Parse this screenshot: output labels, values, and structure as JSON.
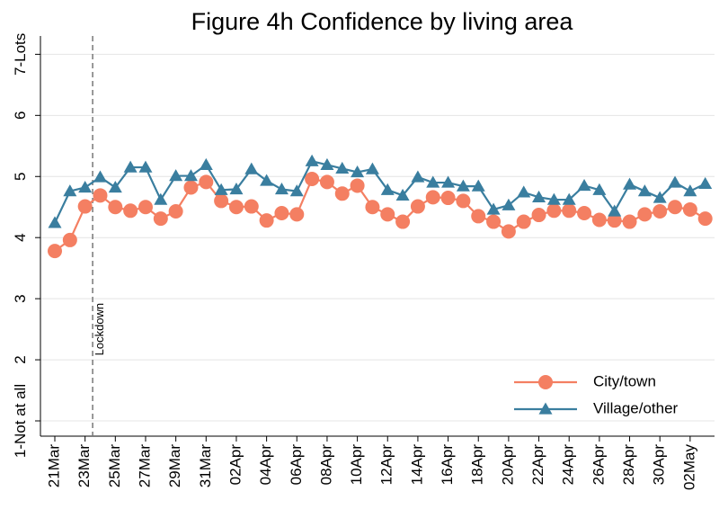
{
  "chart_data": {
    "type": "line",
    "title": "Figure 4h Confidence by living area",
    "categories": [
      "21Mar",
      null,
      "23Mar",
      null,
      "25Mar",
      null,
      "27Mar",
      null,
      "29Mar",
      null,
      "31Mar",
      null,
      "02Apr",
      null,
      "04Apr",
      null,
      "06Apr",
      null,
      "08Apr",
      null,
      "10Apr",
      null,
      "12Apr",
      null,
      "14Apr",
      null,
      "16Apr",
      null,
      "18Apr",
      null,
      "20Apr",
      null,
      "22Apr",
      null,
      "24Apr",
      null,
      "26Apr",
      null,
      "28Apr",
      null,
      "30Apr",
      null,
      "02May",
      null
    ],
    "series": [
      {
        "name": "City/town",
        "color": "#f47f62",
        "marker": "circle",
        "values": [
          3.78,
          3.96,
          4.51,
          4.69,
          4.5,
          4.44,
          4.5,
          4.31,
          4.43,
          4.82,
          4.91,
          4.6,
          4.5,
          4.51,
          4.28,
          4.4,
          4.38,
          4.96,
          4.91,
          4.72,
          4.85,
          4.5,
          4.38,
          4.26,
          4.51,
          4.66,
          4.65,
          4.6,
          4.35,
          4.26,
          4.1,
          4.26,
          4.37,
          4.44,
          4.44,
          4.4,
          4.29,
          4.28,
          4.26,
          4.38,
          4.43,
          4.5,
          4.46,
          4.31
        ]
      },
      {
        "name": "Village/other",
        "color": "#3a7e9f",
        "marker": "triangle",
        "values": [
          4.24,
          4.76,
          4.82,
          4.99,
          4.82,
          5.15,
          5.15,
          4.62,
          5.01,
          5.01,
          5.19,
          4.78,
          4.79,
          5.12,
          4.93,
          4.79,
          4.76,
          5.25,
          5.19,
          5.13,
          5.07,
          5.12,
          4.78,
          4.69,
          4.99,
          4.9,
          4.9,
          4.84,
          4.84,
          4.46,
          4.53,
          4.74,
          4.66,
          4.62,
          4.62,
          4.85,
          4.78,
          4.43,
          4.87,
          4.76,
          4.65,
          4.9,
          4.76,
          4.88
        ]
      }
    ],
    "ylim": [
      0.75,
      7.3
    ],
    "yticks": [
      {
        "value": 1,
        "label": "1-Not at all"
      },
      2,
      3,
      4,
      5,
      6,
      {
        "value": 7,
        "label": "7-Lots"
      }
    ],
    "grid": true,
    "legend": "lower right",
    "annotations": [
      {
        "text": "Lockdown",
        "x": 2.5
      }
    ]
  }
}
